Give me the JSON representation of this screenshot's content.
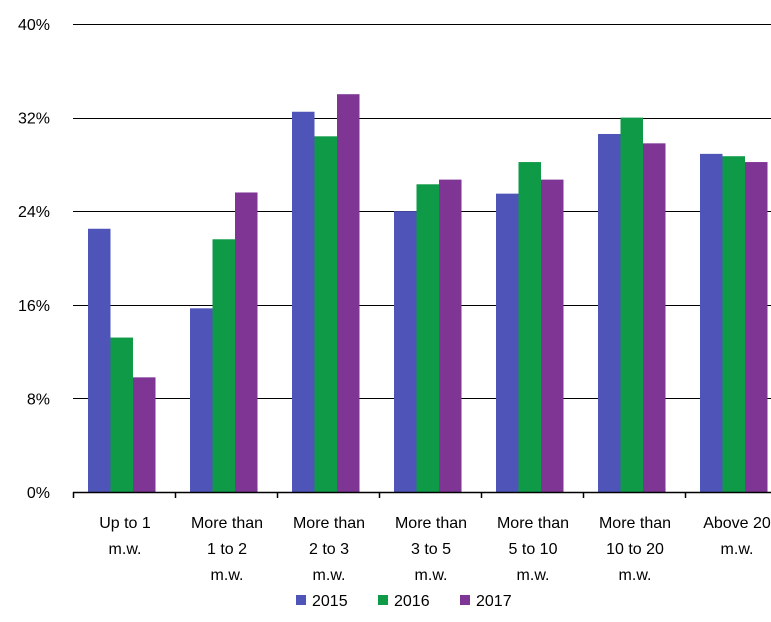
{
  "chart_data": {
    "type": "bar",
    "title": "",
    "xlabel": "",
    "ylabel": "",
    "ylim": [
      0,
      40
    ],
    "yticks": [
      "0%",
      "8%",
      "16%",
      "24%",
      "32%",
      "40%"
    ],
    "ytick_values": [
      0,
      8,
      16,
      24,
      32,
      40
    ],
    "grid": true,
    "legend_position": "bottom",
    "categories": [
      [
        "Up to 1",
        "m.w."
      ],
      [
        "More than",
        "1 to 2",
        "m.w."
      ],
      [
        "More than",
        "2 to 3",
        "m.w."
      ],
      [
        "More than",
        "3 to 5",
        "m.w."
      ],
      [
        "More than",
        "5 to 10",
        "m.w."
      ],
      [
        "More than",
        "10 to 20",
        "m.w."
      ],
      [
        "Above 20",
        "m.w."
      ]
    ],
    "series": [
      {
        "name": "2015",
        "color": "#4f55b8",
        "values": [
          22.5,
          15.7,
          32.5,
          24.0,
          25.5,
          30.6,
          28.9
        ]
      },
      {
        "name": "2016",
        "color": "#0e9a47",
        "values": [
          13.2,
          21.6,
          30.4,
          26.3,
          28.2,
          32.0,
          28.7
        ]
      },
      {
        "name": "2017",
        "color": "#7e3594",
        "values": [
          9.8,
          25.6,
          34.0,
          26.7,
          26.7,
          29.8,
          28.2
        ]
      }
    ]
  }
}
